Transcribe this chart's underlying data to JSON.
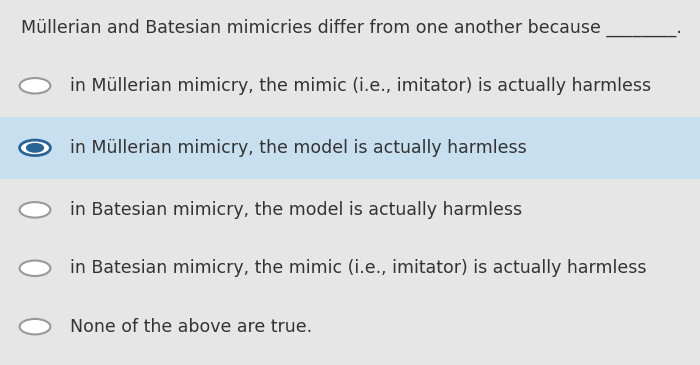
{
  "title": "Müllerian and Batesian mimicries differ from one another because ________.",
  "options": [
    "in Müllerian mimicry, the mimic (i.e., imitator) is actually harmless",
    "in Müllerian mimicry, the model is actually harmless",
    "in Batesian mimicry, the model is actually harmless",
    "in Batesian mimicry, the mimic (i.e., imitator) is actually harmless",
    "None of the above are true."
  ],
  "selected_index": 1,
  "background_color": "#e6e6e6",
  "selected_row_color": "#c8dff0",
  "text_color": "#333333",
  "circle_color": "#999999",
  "selected_circle_outer": "#2a6496",
  "selected_circle_inner": "#2a6496",
  "title_fontsize": 12.5,
  "option_fontsize": 12.5,
  "fig_width": 7.0,
  "fig_height": 3.65
}
